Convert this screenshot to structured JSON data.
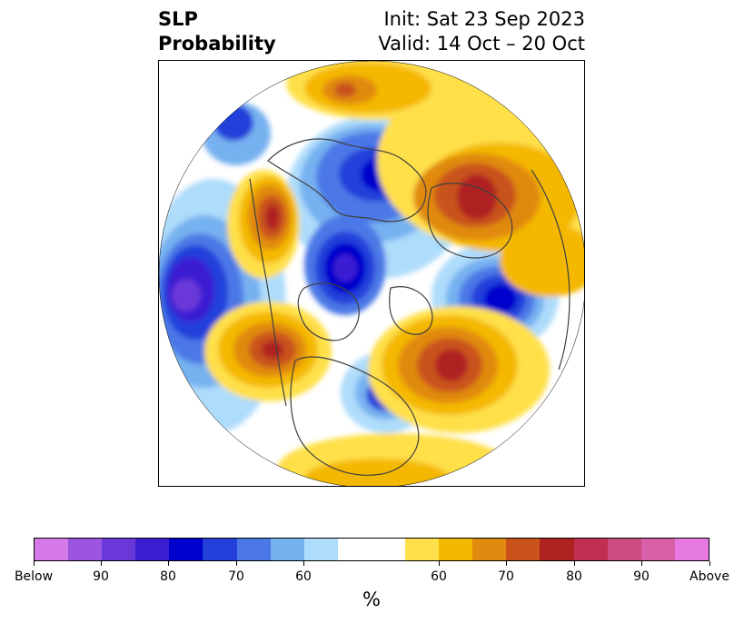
{
  "title": {
    "line1": "SLP",
    "line2": "Probability"
  },
  "init_label": "Init: Sat 23 Sep 2023",
  "valid_label": "Valid: 14 Oct – 20 Oct",
  "colorbar": {
    "unit": "%",
    "colors": [
      "#d67ae8",
      "#9b55e0",
      "#6a37d8",
      "#3a1ed2",
      "#0000cc",
      "#2340da",
      "#4b78e6",
      "#76b1f0",
      "#aedcfb",
      "#ffffff",
      "#ffe04a",
      "#f4b800",
      "#e08a10",
      "#c9531a",
      "#b02222",
      "#c03050",
      "#cc4c80",
      "#d860a8",
      "#e67ae0"
    ],
    "tick_labels": [
      "Below",
      "90",
      "80",
      "70",
      "60",
      "60",
      "70",
      "80",
      "90",
      "Above"
    ]
  },
  "colors": {
    "below_strong": "#0000cc",
    "above_strong": "#b02222",
    "neutral": "#ffffff"
  }
}
